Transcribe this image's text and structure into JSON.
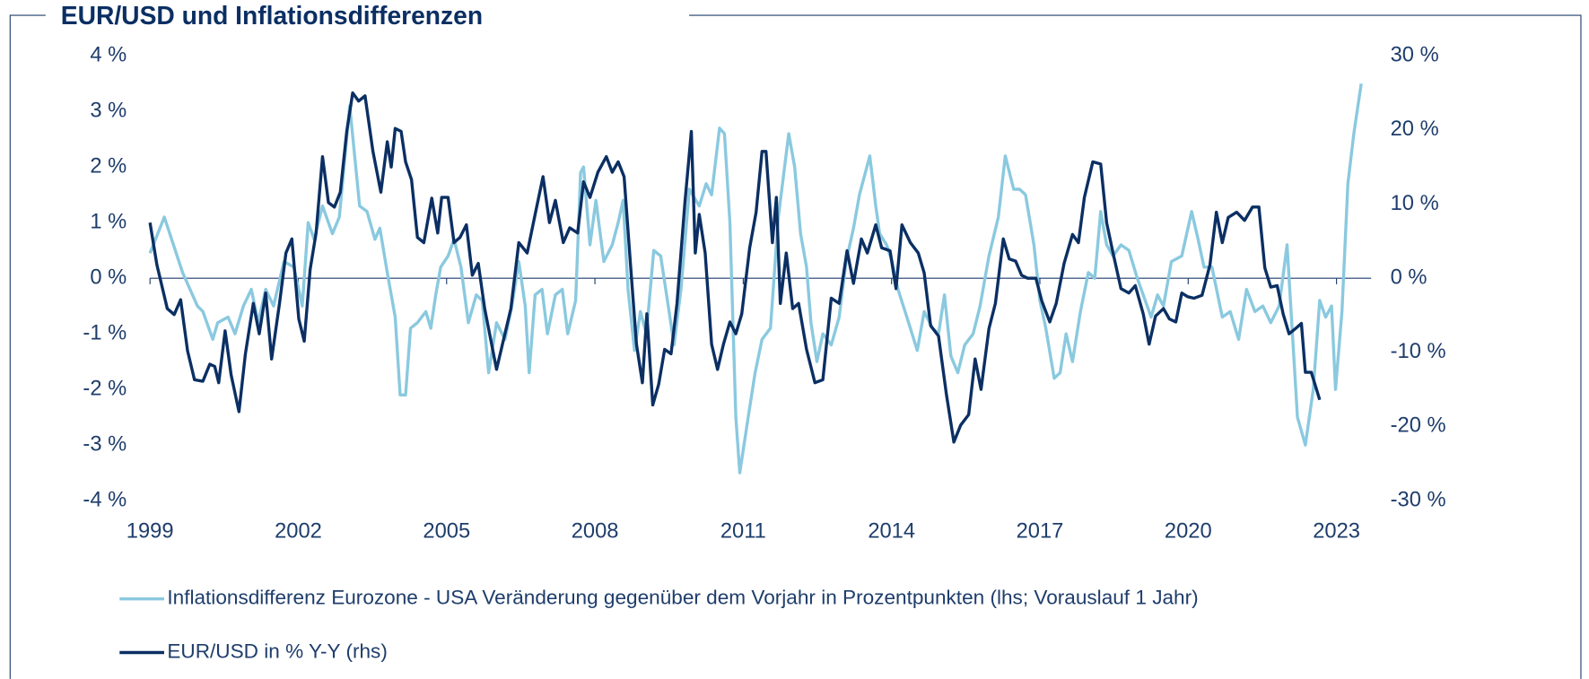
{
  "chart_data": {
    "type": "line",
    "title": "EUR/USD und Inflationsdifferenzen",
    "xlim": [
      1999,
      2023.7
    ],
    "xticks": [
      1999,
      2002,
      2005,
      2008,
      2011,
      2014,
      2017,
      2020,
      2023
    ],
    "ylim": [
      -4,
      4
    ],
    "yticks": [
      {
        "value": -4,
        "label": "-4 %"
      },
      {
        "value": -3,
        "label": "-3 %"
      },
      {
        "value": -2,
        "label": "-2 %"
      },
      {
        "value": -1,
        "label": "-1 %"
      },
      {
        "value": 0,
        "label": "0 %"
      },
      {
        "value": 1,
        "label": "1 %"
      },
      {
        "value": 2,
        "label": "2 %"
      },
      {
        "value": 3,
        "label": "3 %"
      },
      {
        "value": 4,
        "label": "4 %"
      }
    ],
    "y2lim": [
      -30,
      30
    ],
    "y2ticks": [
      {
        "value": -30,
        "label": "-30 %"
      },
      {
        "value": -20,
        "label": "-20 %"
      },
      {
        "value": -10,
        "label": "-10 %"
      },
      {
        "value": 0,
        "label": "0 %"
      },
      {
        "value": 10,
        "label": "10 %"
      },
      {
        "value": 20,
        "label": "20 %"
      },
      {
        "value": 30,
        "label": "30 %"
      }
    ],
    "series": [
      {
        "name": "Inflationsdifferenz Eurozone - USA Veränderung gegenüber dem Vorjahr in Prozentpunkten (lhs; Vorauslauf 1 Jahr)",
        "color": "#8ac9df",
        "axis": "y",
        "x": [
          1999.0,
          1999.29,
          1999.66,
          1999.96,
          2000.07,
          2000.27,
          2000.37,
          2000.58,
          2000.72,
          2000.89,
          2001.05,
          2001.19,
          2001.34,
          2001.5,
          2001.71,
          2001.91,
          2002.08,
          2002.2,
          2002.32,
          2002.49,
          2002.69,
          2002.83,
          2003.04,
          2003.24,
          2003.39,
          2003.55,
          2003.65,
          2003.8,
          2003.96,
          2004.06,
          2004.17,
          2004.27,
          2004.41,
          2004.58,
          2004.68,
          2004.78,
          2004.88,
          2005.03,
          2005.15,
          2005.29,
          2005.44,
          2005.6,
          2005.72,
          2005.85,
          2006.01,
          2006.18,
          2006.32,
          2006.46,
          2006.59,
          2006.67,
          2006.79,
          2006.93,
          2007.04,
          2007.2,
          2007.34,
          2007.45,
          2007.61,
          2007.71,
          2007.77,
          2007.9,
          2008.02,
          2008.18,
          2008.35,
          2008.47,
          2008.57,
          2008.67,
          2008.8,
          2008.92,
          2009.04,
          2009.19,
          2009.33,
          2009.5,
          2009.6,
          2009.74,
          2009.91,
          2010.11,
          2010.25,
          2010.36,
          2010.52,
          2010.62,
          2010.73,
          2010.85,
          2010.93,
          2011.1,
          2011.24,
          2011.38,
          2011.55,
          2011.71,
          2011.92,
          2012.04,
          2012.16,
          2012.28,
          2012.37,
          2012.49,
          2012.61,
          2012.78,
          2012.94,
          2013.08,
          2013.23,
          2013.35,
          2013.56,
          2013.68,
          2013.76,
          2013.9,
          2014.01,
          2014.13,
          2014.31,
          2014.52,
          2014.66,
          2014.83,
          2014.95,
          2015.07,
          2015.2,
          2015.34,
          2015.48,
          2015.65,
          2015.79,
          2015.97,
          2016.16,
          2016.3,
          2016.47,
          2016.59,
          2016.71,
          2016.88,
          2017.0,
          2017.12,
          2017.29,
          2017.41,
          2017.53,
          2017.66,
          2017.82,
          2017.98,
          2018.11,
          2018.23,
          2018.35,
          2018.48,
          2018.64,
          2018.8,
          2018.97,
          2019.13,
          2019.25,
          2019.38,
          2019.5,
          2019.66,
          2019.87,
          2020.07,
          2020.2,
          2020.32,
          2020.48,
          2020.69,
          2020.85,
          2021.02,
          2021.18,
          2021.35,
          2021.51,
          2021.67,
          2021.84,
          2022.0,
          2022.21,
          2022.37,
          2022.53,
          2022.66,
          2022.78,
          2022.9,
          2022.98,
          2023.11,
          2023.23,
          2023.35,
          2023.5
        ],
        "values": [
          0.45,
          1.1,
          0.1,
          -0.5,
          -0.6,
          -1.1,
          -0.8,
          -0.7,
          -1.0,
          -0.5,
          -0.2,
          -0.8,
          -0.2,
          -0.5,
          0.3,
          0.2,
          -0.5,
          1.0,
          0.7,
          1.3,
          0.8,
          1.1,
          3.1,
          1.3,
          1.2,
          0.7,
          0.9,
          0.1,
          -0.7,
          -2.1,
          -2.1,
          -0.9,
          -0.8,
          -0.6,
          -0.9,
          -0.3,
          0.2,
          0.4,
          0.7,
          0.2,
          -0.8,
          -0.3,
          -0.4,
          -1.7,
          -0.8,
          -1.1,
          -0.5,
          0.3,
          -0.5,
          -1.7,
          -0.3,
          -0.2,
          -1.0,
          -0.3,
          -0.2,
          -1.0,
          -0.4,
          1.9,
          2.0,
          0.6,
          1.4,
          0.3,
          0.6,
          1.0,
          1.4,
          -0.2,
          -1.3,
          -0.6,
          -1.0,
          0.5,
          0.4,
          -0.6,
          -1.2,
          -0.2,
          1.6,
          1.3,
          1.7,
          1.5,
          2.7,
          2.6,
          1.0,
          -2.5,
          -3.5,
          -2.5,
          -1.7,
          -1.1,
          -0.9,
          1.1,
          2.6,
          2.0,
          0.8,
          0.2,
          -0.8,
          -1.5,
          -1.0,
          -1.2,
          -0.7,
          0.3,
          0.9,
          1.5,
          2.2,
          1.3,
          0.8,
          0.6,
          0.3,
          -0.2,
          -0.7,
          -1.3,
          -0.6,
          -0.9,
          -1.0,
          -0.3,
          -1.4,
          -1.7,
          -1.2,
          -1.0,
          -0.5,
          0.4,
          1.1,
          2.2,
          1.6,
          1.6,
          1.5,
          0.6,
          -0.4,
          -0.9,
          -1.8,
          -1.7,
          -1.0,
          -1.5,
          -0.6,
          0.1,
          0.0,
          1.2,
          0.6,
          0.4,
          0.6,
          0.5,
          0.0,
          -0.4,
          -0.7,
          -0.3,
          -0.5,
          0.3,
          0.4,
          1.2,
          0.7,
          0.2,
          0.2,
          -0.7,
          -0.6,
          -1.1,
          -0.2,
          -0.6,
          -0.5,
          -0.8,
          -0.5,
          0.6,
          -2.5,
          -3.0,
          -2.0,
          -0.4,
          -0.7,
          -0.5,
          -2.0,
          -0.6,
          1.7,
          2.6,
          3.5
        ]
      },
      {
        "name": "EUR/USD in % Y-Y (rhs)",
        "color": "#0b2f63",
        "axis": "y2",
        "x": [
          1999.0,
          1999.14,
          1999.35,
          1999.49,
          1999.62,
          1999.76,
          1999.9,
          2000.07,
          2000.21,
          2000.31,
          2000.39,
          2000.52,
          2000.64,
          2000.8,
          2000.93,
          2001.09,
          2001.21,
          2001.34,
          2001.46,
          2001.62,
          2001.75,
          2001.87,
          2002.01,
          2002.12,
          2002.24,
          2002.36,
          2002.49,
          2002.61,
          2002.73,
          2002.85,
          2002.98,
          2003.1,
          2003.22,
          2003.35,
          2003.51,
          2003.67,
          2003.8,
          2003.88,
          2003.96,
          2004.08,
          2004.17,
          2004.29,
          2004.41,
          2004.54,
          2004.7,
          2004.82,
          2004.9,
          2005.03,
          2005.15,
          2005.27,
          2005.4,
          2005.52,
          2005.64,
          2005.77,
          2005.89,
          2006.01,
          2006.13,
          2006.3,
          2006.46,
          2006.63,
          2006.79,
          2006.95,
          2007.08,
          2007.2,
          2007.36,
          2007.49,
          2007.65,
          2007.77,
          2007.9,
          2008.06,
          2008.23,
          2008.35,
          2008.47,
          2008.59,
          2008.72,
          2008.84,
          2008.96,
          2009.05,
          2009.17,
          2009.29,
          2009.41,
          2009.54,
          2009.66,
          2009.82,
          2009.95,
          2010.03,
          2010.11,
          2010.23,
          2010.36,
          2010.48,
          2010.6,
          2010.73,
          2010.85,
          2010.97,
          2011.13,
          2011.26,
          2011.38,
          2011.46,
          2011.59,
          2011.67,
          2011.75,
          2011.87,
          2012.0,
          2012.12,
          2012.28,
          2012.45,
          2012.61,
          2012.78,
          2012.94,
          2013.1,
          2013.23,
          2013.39,
          2013.51,
          2013.68,
          2013.8,
          2013.97,
          2014.09,
          2014.21,
          2014.38,
          2014.54,
          2014.66,
          2014.79,
          2014.95,
          2015.11,
          2015.26,
          2015.4,
          2015.56,
          2015.69,
          2015.81,
          2015.97,
          2016.1,
          2016.26,
          2016.38,
          2016.51,
          2016.63,
          2016.75,
          2016.92,
          2017.04,
          2017.2,
          2017.33,
          2017.49,
          2017.66,
          2017.78,
          2017.9,
          2018.07,
          2018.23,
          2018.35,
          2018.48,
          2018.64,
          2018.8,
          2018.93,
          2019.09,
          2019.21,
          2019.34,
          2019.5,
          2019.62,
          2019.75,
          2019.87,
          2019.99,
          2020.12,
          2020.28,
          2020.44,
          2020.57,
          2020.69,
          2020.81,
          2020.98,
          2021.14,
          2021.3,
          2021.43,
          2021.55,
          2021.67,
          2021.8,
          2021.92,
          2022.04,
          2022.17,
          2022.29,
          2022.37,
          2022.49,
          2022.66
        ],
        "values": [
          7.5,
          1.8,
          -4.1,
          -4.9,
          -2.9,
          -9.8,
          -13.7,
          -13.9,
          -11.6,
          -11.9,
          -14.1,
          -7.1,
          -13.0,
          -18.0,
          -10.2,
          -3.4,
          -7.5,
          -2.0,
          -10.9,
          -3.4,
          3.4,
          5.3,
          -5.5,
          -8.5,
          1.2,
          6.1,
          16.4,
          10.2,
          9.6,
          11.6,
          19.8,
          25.0,
          23.9,
          24.6,
          17.1,
          11.6,
          18.4,
          15.0,
          20.2,
          19.8,
          15.7,
          13.3,
          5.5,
          4.8,
          10.8,
          6.1,
          10.9,
          10.9,
          4.8,
          5.5,
          7.2,
          0.4,
          2.0,
          -4.1,
          -8.2,
          -12.3,
          -8.9,
          -4.1,
          4.8,
          3.4,
          8.6,
          13.7,
          7.5,
          10.5,
          4.8,
          6.8,
          6.1,
          13.0,
          10.9,
          14.3,
          16.4,
          14.3,
          15.7,
          13.7,
          1.8,
          -8.9,
          -14.1,
          -4.8,
          -17.1,
          -14.3,
          -9.6,
          -10.2,
          -3.4,
          10.2,
          19.8,
          3.4,
          8.6,
          3.4,
          -8.9,
          -12.3,
          -8.9,
          -5.9,
          -7.5,
          -4.8,
          4.1,
          8.9,
          17.1,
          17.1,
          4.8,
          10.9,
          -3.4,
          3.4,
          -4.1,
          -3.4,
          -9.6,
          -14.1,
          -13.7,
          -2.7,
          -3.4,
          3.7,
          -0.7,
          5.3,
          3.4,
          7.2,
          4.1,
          3.7,
          -1.4,
          7.2,
          4.8,
          3.4,
          0.7,
          -6.4,
          -7.8,
          -15.7,
          -22.1,
          -19.8,
          -18.4,
          -10.9,
          -15.0,
          -6.8,
          -3.4,
          5.3,
          2.6,
          2.3,
          0.4,
          0.0,
          0.0,
          -3.1,
          -5.9,
          -3.4,
          2.0,
          5.9,
          4.8,
          10.9,
          15.7,
          15.4,
          7.5,
          3.4,
          -1.4,
          -2.0,
          -1.0,
          -4.8,
          -8.9,
          -5.1,
          -4.1,
          -5.5,
          -5.9,
          -2.0,
          -2.5,
          -2.7,
          -2.3,
          1.8,
          8.9,
          4.8,
          8.2,
          8.9,
          7.8,
          9.6,
          9.6,
          1.4,
          -1.2,
          -1.0,
          -4.8,
          -7.5,
          -6.8,
          -6.1,
          -12.7,
          -12.7,
          -16.4
        ]
      }
    ]
  }
}
